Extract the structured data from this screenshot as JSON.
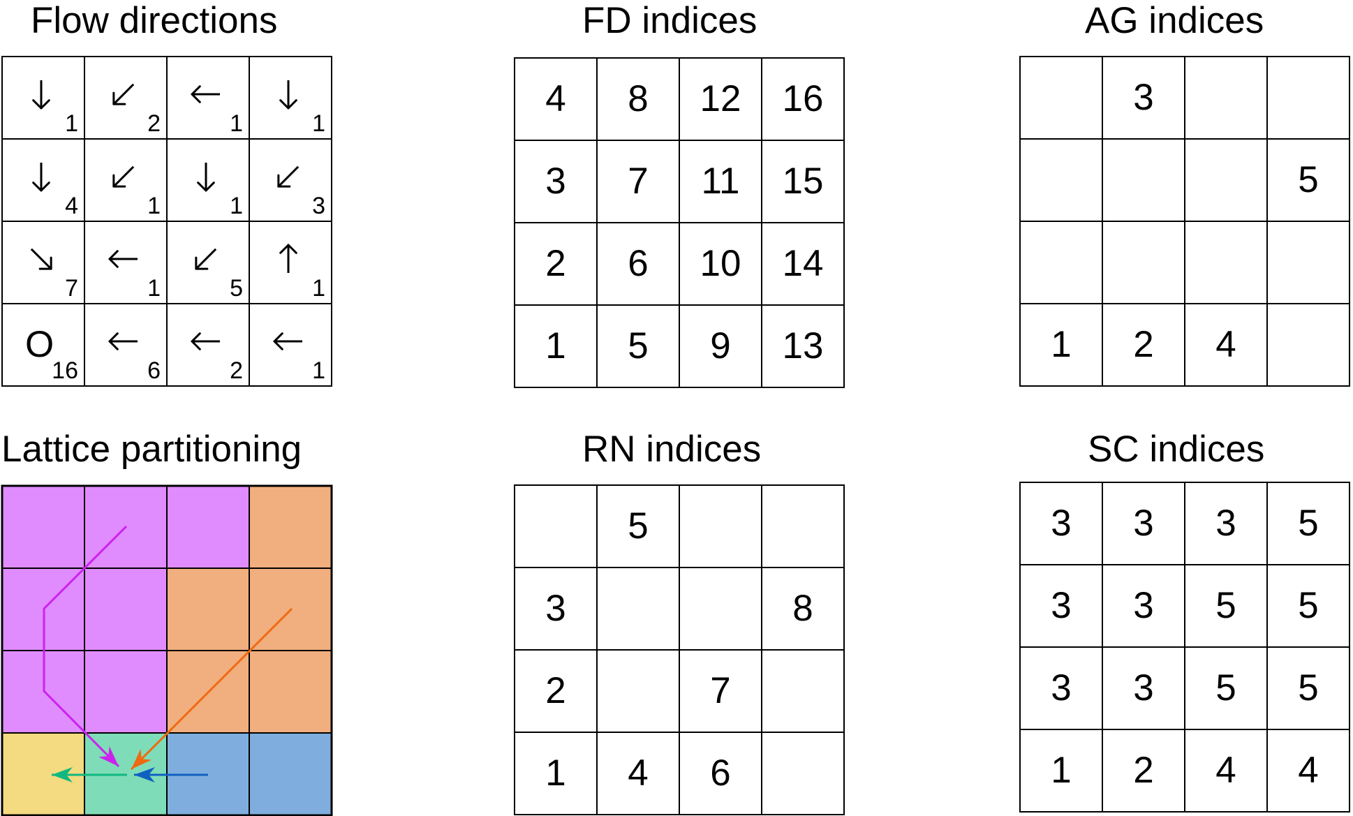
{
  "panels": {
    "flow": {
      "title": "Flow directions"
    },
    "fd": {
      "title": "FD indices"
    },
    "ag": {
      "title": "AG indices"
    },
    "lattice": {
      "title": "Lattice partitioning"
    },
    "rn": {
      "title": "RN indices"
    },
    "sc": {
      "title": "SC indices"
    }
  },
  "flow_grid": [
    [
      {
        "dir": "S",
        "acc": "1"
      },
      {
        "dir": "SW",
        "acc": "2"
      },
      {
        "dir": "W",
        "acc": "1"
      },
      {
        "dir": "S",
        "acc": "1"
      }
    ],
    [
      {
        "dir": "S",
        "acc": "4"
      },
      {
        "dir": "SW",
        "acc": "1"
      },
      {
        "dir": "S",
        "acc": "1"
      },
      {
        "dir": "SW",
        "acc": "3"
      }
    ],
    [
      {
        "dir": "SE",
        "acc": "7"
      },
      {
        "dir": "W",
        "acc": "1"
      },
      {
        "dir": "SW",
        "acc": "5"
      },
      {
        "dir": "N",
        "acc": "1"
      }
    ],
    [
      {
        "dir": "O",
        "acc": "16"
      },
      {
        "dir": "W",
        "acc": "6"
      },
      {
        "dir": "W",
        "acc": "2"
      },
      {
        "dir": "W",
        "acc": "1"
      }
    ]
  ],
  "outlet_symbol": "O",
  "fd_grid": [
    [
      "4",
      "8",
      "12",
      "16"
    ],
    [
      "3",
      "7",
      "11",
      "15"
    ],
    [
      "2",
      "6",
      "10",
      "14"
    ],
    [
      "1",
      "5",
      "9",
      "13"
    ]
  ],
  "ag_grid": [
    [
      "",
      "3",
      "",
      ""
    ],
    [
      "",
      "",
      "",
      "5"
    ],
    [
      "",
      "",
      "",
      ""
    ],
    [
      "1",
      "2",
      "4",
      ""
    ]
  ],
  "rn_grid": [
    [
      "",
      "5",
      "",
      ""
    ],
    [
      "3",
      "",
      "",
      "8"
    ],
    [
      "2",
      "",
      "7",
      ""
    ],
    [
      "1",
      "4",
      "6",
      ""
    ]
  ],
  "sc_grid": [
    [
      "3",
      "3",
      "3",
      "5"
    ],
    [
      "3",
      "3",
      "5",
      "5"
    ],
    [
      "3",
      "3",
      "5",
      "5"
    ],
    [
      "1",
      "2",
      "4",
      "4"
    ]
  ],
  "lattice": {
    "colors": {
      "magenta": "#e08cff",
      "orange": "#f1ae7e",
      "yellow": "#f4da80",
      "green": "#7fdcb8",
      "blue": "#7faede"
    },
    "regions": [
      [
        "magenta",
        "magenta",
        "magenta",
        "orange"
      ],
      [
        "magenta",
        "magenta",
        "orange",
        "orange"
      ],
      [
        "magenta",
        "magenta",
        "orange",
        "orange"
      ],
      [
        "yellow",
        "green",
        "blue",
        "blue"
      ]
    ],
    "arrow_colors": {
      "magenta": "#cc22ee",
      "orange": "#ee6a10",
      "green": "#10b880",
      "blue": "#1060c0"
    }
  }
}
